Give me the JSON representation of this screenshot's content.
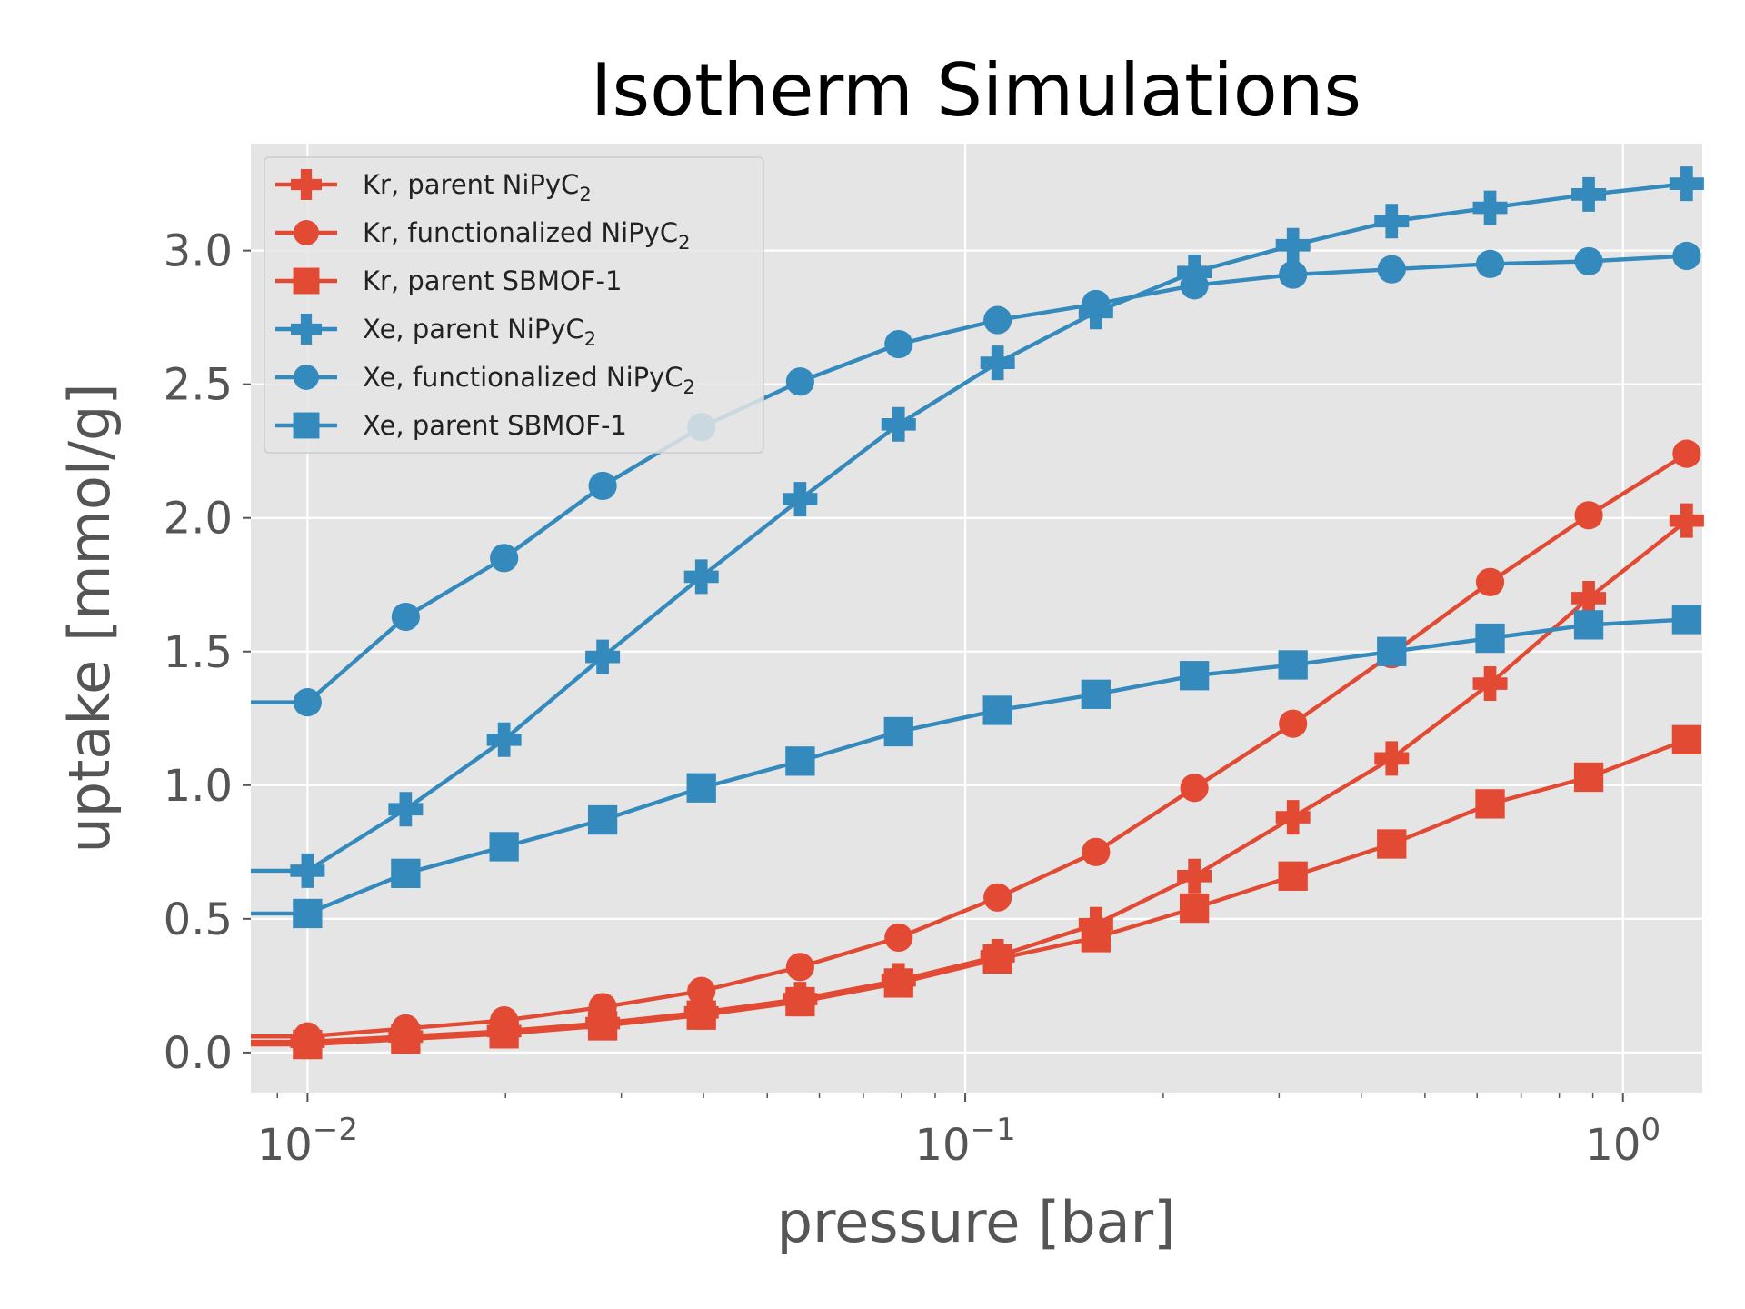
{
  "chart_data": {
    "type": "line",
    "title": "Isotherm Simulations",
    "xlabel": "pressure [bar]",
    "ylabel": "uptake [mmol/g]",
    "x_scale": "log",
    "xlim": [
      0.0082,
      1.32
    ],
    "ylim": [
      -0.15,
      3.4
    ],
    "grid": true,
    "legend_position": "upper-left",
    "x_ticks": [
      {
        "value": 0.01,
        "base": "10",
        "exp": "−2"
      },
      {
        "value": 0.1,
        "base": "10",
        "exp": "−1"
      },
      {
        "value": 1,
        "base": "10",
        "exp": "0"
      }
    ],
    "y_ticks": [
      {
        "value": 0.0,
        "label": "0.0"
      },
      {
        "value": 0.5,
        "label": "0.5"
      },
      {
        "value": 1.0,
        "label": "1.0"
      },
      {
        "value": 1.5,
        "label": "1.5"
      },
      {
        "value": 2.0,
        "label": "2.0"
      },
      {
        "value": 2.5,
        "label": "2.5"
      },
      {
        "value": 3.0,
        "label": "3.0"
      }
    ],
    "x": [
      0.01,
      0.0141,
      0.0199,
      0.0281,
      0.0397,
      0.0561,
      0.0792,
      0.112,
      0.158,
      0.223,
      0.315,
      0.445,
      0.628,
      0.887,
      1.25
    ],
    "series": [
      {
        "name": "Kr, parent NiPyC",
        "sub": "2",
        "element": "Kr",
        "color": "#E24A33",
        "marker": "plus",
        "values": [
          0.04,
          0.06,
          0.08,
          0.11,
          0.15,
          0.2,
          0.27,
          0.36,
          0.48,
          0.66,
          0.88,
          1.1,
          1.38,
          1.7,
          1.99
        ]
      },
      {
        "name": "Kr, functionalized NiPyC",
        "sub": "2",
        "element": "Kr",
        "color": "#E24A33",
        "marker": "circle",
        "values": [
          0.06,
          0.09,
          0.12,
          0.17,
          0.23,
          0.32,
          0.43,
          0.58,
          0.75,
          0.99,
          1.23,
          1.49,
          1.76,
          2.01,
          2.24
        ]
      },
      {
        "name": "Kr, parent SBMOF-1",
        "sub": "",
        "element": "Kr",
        "color": "#E24A33",
        "marker": "square",
        "values": [
          0.03,
          0.05,
          0.07,
          0.1,
          0.14,
          0.19,
          0.26,
          0.35,
          0.43,
          0.54,
          0.66,
          0.78,
          0.93,
          1.03,
          1.17
        ]
      },
      {
        "name": "Xe, parent NiPyC",
        "sub": "2",
        "element": "Xe",
        "color": "#348ABD",
        "marker": "plus",
        "values": [
          0.68,
          0.91,
          1.17,
          1.48,
          1.78,
          2.07,
          2.35,
          2.58,
          2.77,
          2.92,
          3.02,
          3.11,
          3.16,
          3.21,
          3.25
        ]
      },
      {
        "name": "Xe, functionalized NiPyC",
        "sub": "2",
        "element": "Xe",
        "color": "#348ABD",
        "marker": "circle",
        "values": [
          1.31,
          1.63,
          1.85,
          2.12,
          2.34,
          2.51,
          2.65,
          2.74,
          2.8,
          2.87,
          2.91,
          2.93,
          2.95,
          2.96,
          2.98
        ]
      },
      {
        "name": "Xe, parent SBMOF-1",
        "sub": "",
        "element": "Xe",
        "color": "#348ABD",
        "marker": "square",
        "values": [
          0.52,
          0.67,
          0.77,
          0.87,
          0.99,
          1.09,
          1.2,
          1.28,
          1.34,
          1.41,
          1.45,
          1.5,
          1.55,
          1.6,
          1.62
        ]
      }
    ]
  }
}
